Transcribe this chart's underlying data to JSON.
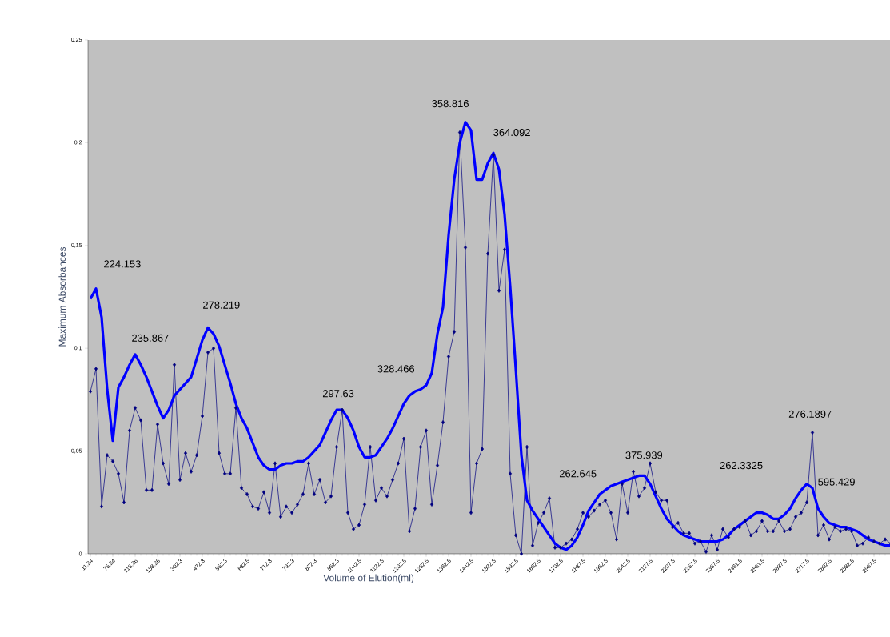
{
  "chart_data": {
    "type": "line",
    "xlabel": "Volume of Elution(ml)",
    "ylabel": "Maximum Absorbances",
    "categories": [
      "11.24",
      null,
      null,
      null,
      "75.24",
      null,
      null,
      null,
      "118.26",
      null,
      null,
      null,
      "188.26",
      null,
      null,
      null,
      "302.3",
      null,
      null,
      null,
      "472.3",
      null,
      null,
      null,
      "552.3",
      null,
      null,
      null,
      "632.5",
      null,
      null,
      null,
      "712.3",
      null,
      null,
      null,
      "792.3",
      null,
      null,
      null,
      "872.3",
      null,
      null,
      null,
      "952.3",
      null,
      null,
      null,
      "1042.5",
      null,
      null,
      null,
      "1122.5",
      null,
      null,
      null,
      "1202.5",
      null,
      null,
      null,
      "1282.5",
      null,
      null,
      null,
      "1362.5",
      null,
      null,
      null,
      "1442.5",
      null,
      null,
      null,
      "1522.5",
      null,
      null,
      null,
      "1592.5",
      null,
      null,
      null,
      "1662.5",
      null,
      null,
      null,
      "1702.5",
      null,
      null,
      null,
      "1837.5",
      null,
      null,
      null,
      "1952.5",
      null,
      null,
      null,
      "2042.5",
      null,
      null,
      null,
      "2127.5",
      null,
      null,
      null,
      "2207.5",
      null,
      null,
      null,
      "2257.5",
      null,
      null,
      null,
      "2387.5",
      null,
      null,
      null,
      "2461.5",
      null,
      null,
      null,
      "2561.5",
      null,
      null,
      null,
      "2637.5",
      null,
      null,
      null,
      "2717.5",
      null,
      null,
      null,
      "2802.5",
      null,
      null,
      null,
      "2882.5",
      null,
      null,
      null,
      "2967.5",
      null,
      null,
      null
    ],
    "series": [
      {
        "color": "#000080",
        "marker": "diamond",
        "values": [
          0.079,
          0.09,
          0.023,
          0.048,
          0.045,
          0.039,
          0.025,
          0.06,
          0.071,
          0.065,
          0.031,
          0.031,
          0.063,
          0.044,
          0.034,
          0.092,
          0.036,
          0.049,
          0.04,
          0.048,
          0.067,
          0.098,
          0.1,
          0.049,
          0.039,
          0.039,
          0.071,
          0.032,
          0.029,
          0.023,
          0.022,
          0.03,
          0.02,
          0.044,
          0.018,
          0.023,
          0.02,
          0.024,
          0.029,
          0.044,
          0.029,
          0.036,
          0.025,
          0.028,
          0.052,
          0.07,
          0.02,
          0.012,
          0.014,
          0.024,
          0.052,
          0.026,
          0.032,
          0.028,
          0.036,
          0.044,
          0.056,
          0.011,
          0.022,
          0.052,
          0.06,
          0.024,
          0.043,
          0.064,
          0.096,
          0.108,
          0.205,
          0.149,
          0.02,
          0.044,
          0.051,
          0.146,
          0.194,
          0.128,
          0.148,
          0.039,
          0.009,
          0,
          0.052,
          0.004,
          0.015,
          0.02,
          0.027,
          0.003,
          0.003,
          0.005,
          0.007,
          0.012,
          0.02,
          0.018,
          0.021,
          0.024,
          0.026,
          0.02,
          0.007,
          0.034,
          0.02,
          0.04,
          0.028,
          0.032,
          0.044,
          0.03,
          0.026,
          0.026,
          0.013,
          0.015,
          0.01,
          0.01,
          0.005,
          0.006,
          0.001,
          0.009,
          0.002,
          0.012,
          0.008,
          0.012,
          0.013,
          0.016,
          0.009,
          0.011,
          0.016,
          0.011,
          0.011,
          0.016,
          0.011,
          0.012,
          0.018,
          0.02,
          0.025,
          0.059,
          0.009,
          0.014,
          0.007,
          0.013,
          0.011,
          0.012,
          0.011,
          0.004,
          0.005,
          0.008,
          0.006,
          0.005,
          0.007,
          0.005
        ]
      },
      {
        "color": "#0000ff",
        "marker": "none",
        "values": [
          0.124,
          0.129,
          0.115,
          0.08,
          0.055,
          0.081,
          0.086,
          0.092,
          0.097,
          0.092,
          0.086,
          0.079,
          0.072,
          0.066,
          0.07,
          0.077,
          0.08,
          0.083,
          0.086,
          0.095,
          0.104,
          0.11,
          0.107,
          0.101,
          0.092,
          0.083,
          0.073,
          0.066,
          0.061,
          0.054,
          0.047,
          0.043,
          0.041,
          0.041,
          0.043,
          0.044,
          0.044,
          0.045,
          0.045,
          0.047,
          0.05,
          0.053,
          0.059,
          0.065,
          0.07,
          0.07,
          0.066,
          0.06,
          0.052,
          0.047,
          0.047,
          0.048,
          0.052,
          0.056,
          0.061,
          0.067,
          0.073,
          0.077,
          0.079,
          0.08,
          0.082,
          0.088,
          0.107,
          0.12,
          0.155,
          0.182,
          0.2,
          0.21,
          0.206,
          0.182,
          0.182,
          0.19,
          0.195,
          0.187,
          0.165,
          0.13,
          0.09,
          0.048,
          0.026,
          0.021,
          0.017,
          0.013,
          0.009,
          0.005,
          0.003,
          0.002,
          0.004,
          0.008,
          0.014,
          0.021,
          0.025,
          0.029,
          0.031,
          0.033,
          0.034,
          0.035,
          0.036,
          0.037,
          0.038,
          0.038,
          0.034,
          0.028,
          0.022,
          0.017,
          0.014,
          0.011,
          0.009,
          0.008,
          0.007,
          0.006,
          0.006,
          0.006,
          0.006,
          0.007,
          0.009,
          0.012,
          0.014,
          0.016,
          0.018,
          0.02,
          0.02,
          0.019,
          0.017,
          0.017,
          0.019,
          0.022,
          0.027,
          0.031,
          0.034,
          0.032,
          0.022,
          0.018,
          0.015,
          0.014,
          0.013,
          0.013,
          0.012,
          0.011,
          0.009,
          0.007,
          0.006,
          0.005,
          0.004,
          0.004
        ]
      }
    ],
    "ylim": [
      0,
      0.25
    ],
    "yticks": [
      {
        "value": 0,
        "label": "0"
      },
      {
        "value": 0.05,
        "label": "0,05"
      },
      {
        "value": 0.1,
        "label": "0,1"
      },
      {
        "value": 0.15,
        "label": "0,15"
      },
      {
        "value": 0.2,
        "label": "0,2"
      },
      {
        "value": 0.25,
        "label": "0,25"
      }
    ],
    "annotations": [
      "224.153",
      "235.867",
      "278.219",
      "297.63",
      "328.466",
      "358.816",
      "364.092",
      "262.645",
      "375.939",
      "262.3325",
      "276.1897",
      "595.429"
    ]
  }
}
